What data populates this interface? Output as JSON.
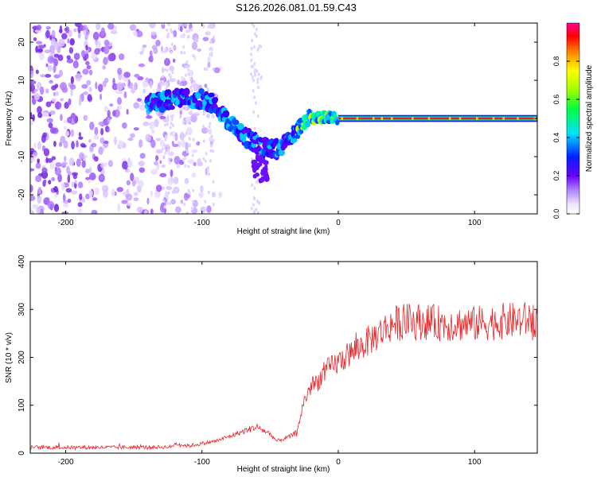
{
  "chart_data": [
    {
      "type": "heatmap",
      "title": "S126.2026.081.01.59.C43",
      "xlabel": "Height of straight line (km)",
      "ylabel": "Frequency (Hz)",
      "xlim": [
        -226,
        146
      ],
      "ylim": [
        -25,
        25
      ],
      "xticks": [
        -200,
        -100,
        0,
        100
      ],
      "xtick_labels": [
        "-200",
        "-100",
        "0",
        "100"
      ],
      "yticks": [
        -20,
        -10,
        0,
        10,
        20
      ],
      "ytick_labels": [
        "-20",
        "-10",
        "0",
        "10",
        "20"
      ],
      "colorbar": {
        "label": "Normalized spectral amplitude",
        "range": [
          0.0,
          1.0
        ],
        "ticks": [
          0.0,
          0.2,
          0.4,
          0.6,
          0.8
        ],
        "tick_labels": [
          "0.0",
          "0.2",
          "0.4",
          "0.6",
          "0.8"
        ]
      },
      "frequency_track": {
        "x": [
          -140,
          -130,
          -120,
          -110,
          -100,
          -92,
          -85,
          -78,
          -70,
          -62,
          -55,
          -50,
          -45,
          -40,
          -35,
          -30,
          -25,
          -20,
          -15,
          -10,
          -5,
          0,
          20,
          50,
          80,
          110,
          146
        ],
        "y": [
          4,
          4.5,
          5,
          5,
          5,
          4,
          1,
          -2,
          -4.5,
          -6,
          -7.5,
          -8,
          -8,
          -7,
          -5,
          -3,
          -1,
          0,
          0.3,
          0.3,
          0.2,
          0,
          0,
          0,
          0,
          0,
          0
        ]
      }
    },
    {
      "type": "line",
      "xlabel": "Height of straight line (km)",
      "ylabel": "SNR (10 * v/v)",
      "xlim": [
        -226,
        146
      ],
      "ylim": [
        0,
        400
      ],
      "xticks": [
        -200,
        -100,
        0,
        100
      ],
      "xtick_labels": [
        "-200",
        "-100",
        "0",
        "100"
      ],
      "yticks": [
        0,
        100,
        200,
        300,
        400
      ],
      "ytick_labels": [
        "0",
        "100",
        "200",
        "300",
        "400"
      ],
      "series": [
        {
          "name": "SNR",
          "color": "#e8262a",
          "x": [
            -226,
            -200,
            -150,
            -122,
            -120,
            -110,
            -100,
            -90,
            -80,
            -70,
            -60,
            -50,
            -45,
            -40,
            -35,
            -30,
            -28,
            -25,
            -20,
            -15,
            -10,
            0,
            10,
            20,
            30,
            40,
            50,
            60,
            80,
            100,
            120,
            146
          ],
          "y": [
            12,
            12,
            12,
            13,
            20,
            15,
            20,
            25,
            35,
            45,
            55,
            40,
            25,
            30,
            35,
            45,
            75,
            110,
            140,
            150,
            170,
            190,
            210,
            230,
            250,
            270,
            275,
            275,
            270,
            270,
            275,
            280
          ]
        }
      ]
    }
  ]
}
